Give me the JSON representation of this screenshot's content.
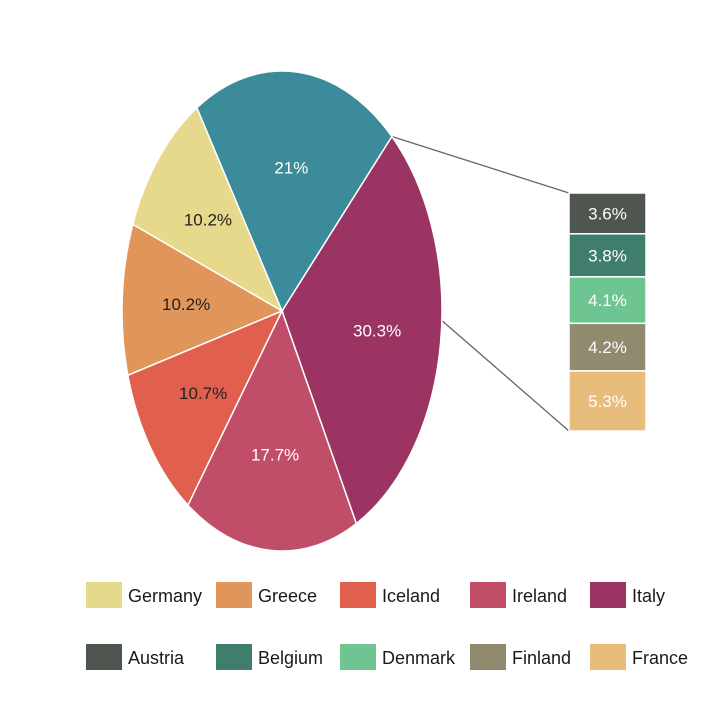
{
  "chart_data": {
    "type": "bar-of-pie",
    "pie": {
      "slices": [
        {
          "name": "Italy",
          "value": 30.3,
          "label": "30.3%",
          "color": "#9b3463",
          "label_color": "#ffffff"
        },
        {
          "name": "",
          "value": 21.0,
          "label": "21%",
          "color": "#3b8b9a",
          "label_color": "#ffffff"
        },
        {
          "name": "Germany",
          "value": 10.2,
          "label": "10.2%",
          "color": "#e7d98c",
          "label_color": "#222222"
        },
        {
          "name": "Greece",
          "value": 10.2,
          "label": "10.2%",
          "color": "#e0955a",
          "label_color": "#222222"
        },
        {
          "name": "Iceland",
          "value": 10.7,
          "label": "10.7%",
          "color": "#e0604d",
          "label_color": "#222222"
        },
        {
          "name": "Ireland",
          "value": 17.7,
          "label": "17.7%",
          "color": "#c04e68",
          "label_color": "#ffffff"
        }
      ]
    },
    "bar": {
      "segments": [
        {
          "name": "Austria",
          "value": 3.6,
          "label": "3.6%",
          "color": "#4f5650"
        },
        {
          "name": "Belgium",
          "value": 3.8,
          "label": "3.8%",
          "color": "#3f7d6c"
        },
        {
          "name": "Denmark",
          "value": 4.1,
          "label": "4.1%",
          "color": "#6fc592"
        },
        {
          "name": "Finland",
          "value": 4.2,
          "label": "4.2%",
          "color": "#908a6e"
        },
        {
          "name": "France",
          "value": 5.3,
          "label": "5.3%",
          "color": "#e8bd7c"
        }
      ]
    },
    "legend": {
      "placement": "bottom",
      "entries": [
        {
          "name": "Germany",
          "color": "#e7d98c"
        },
        {
          "name": "Greece",
          "color": "#e0955a"
        },
        {
          "name": "Iceland",
          "color": "#e0604d"
        },
        {
          "name": "Ireland",
          "color": "#c04e68"
        },
        {
          "name": "Italy",
          "color": "#9b3463"
        },
        {
          "name": "Austria",
          "color": "#4f5650"
        },
        {
          "name": "Belgium",
          "color": "#3f7d6c"
        },
        {
          "name": "Denmark",
          "color": "#6fc592"
        },
        {
          "name": "Finland",
          "color": "#908a6e"
        },
        {
          "name": "France",
          "color": "#e8bd7c"
        }
      ]
    },
    "connector_color": "#666666"
  }
}
